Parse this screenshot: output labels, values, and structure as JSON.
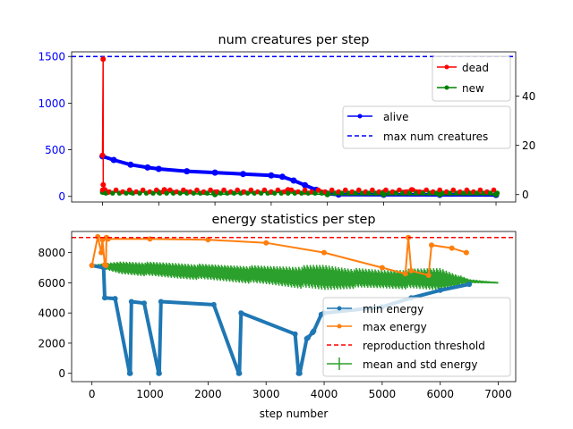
{
  "chart_data": [
    {
      "type": "line",
      "title": "num creatures per step",
      "xlabel": "",
      "xlim": [
        -550,
        7350
      ],
      "ylim_left": [
        -60,
        1550
      ],
      "ylim_right": [
        -3,
        58
      ],
      "yticks_left": [
        "0",
        "500",
        "1000",
        "1500"
      ],
      "yticks_left_values": [
        0,
        500,
        1000,
        1500
      ],
      "yticks_right": [
        "0",
        "20",
        "40"
      ],
      "yticks_right_values": [
        0,
        20,
        40
      ],
      "left_axis_color": "#0000ff",
      "series": [
        {
          "name": "alive",
          "axis": "left",
          "color": "#0000ff",
          "x": [
            0,
            200,
            500,
            800,
            1000,
            1500,
            2000,
            2500,
            3000,
            3200,
            3400,
            3600,
            3800,
            4000,
            4200,
            5000,
            6000,
            7000
          ],
          "values": [
            430,
            390,
            340,
            310,
            295,
            270,
            255,
            240,
            225,
            210,
            170,
            120,
            70,
            30,
            20,
            18,
            17,
            16
          ]
        },
        {
          "name": "max num creatures",
          "axis": "left",
          "color": "#0000ff",
          "style": "dashed",
          "values": [
            1500
          ]
        },
        {
          "name": "dead",
          "axis": "right",
          "color": "#ff0000",
          "x": [
            0,
            10,
            12,
            20,
            40,
            100,
            500,
            1000,
            1100,
            1500,
            2000,
            2500,
            3000,
            3300,
            3600,
            3900,
            4200,
            5000,
            5500,
            6000,
            6500,
            7000
          ],
          "values": [
            16,
            55,
            4,
            1,
            2,
            1,
            1,
            1,
            2,
            1,
            1,
            1,
            1,
            2,
            1,
            1,
            1,
            1,
            2,
            1,
            1,
            0
          ]
        },
        {
          "name": "new",
          "axis": "right",
          "color": "#008000",
          "x": [
            0,
            500,
            1000,
            2000,
            3000,
            4000,
            5000,
            6000,
            7000
          ],
          "values": [
            1,
            1,
            1,
            0,
            1,
            0,
            0,
            0,
            0
          ]
        }
      ],
      "legends": [
        {
          "position": "top-right",
          "entries": [
            "dead",
            "new"
          ]
        },
        {
          "position": "center-right",
          "entries": [
            "alive",
            "max num creatures"
          ]
        }
      ]
    },
    {
      "type": "line",
      "title": "energy statistics per step",
      "xlabel": "step number",
      "xlim": [
        -350,
        7300
      ],
      "ylim": [
        -550,
        9400
      ],
      "xticks": [
        "0",
        "1000",
        "2000",
        "3000",
        "4000",
        "5000",
        "6000",
        "7000"
      ],
      "xticks_values": [
        0,
        1000,
        2000,
        3000,
        4000,
        5000,
        6000,
        7000
      ],
      "yticks": [
        "0",
        "2000",
        "4000",
        "6000",
        "8000"
      ],
      "yticks_values": [
        0,
        2000,
        4000,
        6000,
        8000
      ],
      "series": [
        {
          "name": "min energy",
          "color": "#1f77b4",
          "x": [
            0,
            200,
            220,
            400,
            650,
            660,
            680,
            900,
            1150,
            1160,
            1190,
            2100,
            2530,
            2540,
            2570,
            3500,
            3560,
            3580,
            3700,
            3720,
            3800,
            3820,
            3950,
            4000,
            5000,
            5500,
            6000,
            6500
          ],
          "values": [
            7150,
            7000,
            5000,
            4950,
            0,
            0,
            4750,
            4650,
            0,
            0,
            4750,
            4550,
            0,
            0,
            4000,
            2600,
            0,
            0,
            2300,
            2350,
            2700,
            2800,
            3900,
            4000,
            4400,
            5000,
            5500,
            5900
          ]
        },
        {
          "name": "max energy",
          "color": "#ff7f0e",
          "x": [
            0,
            100,
            160,
            180,
            220,
            240,
            250,
            260,
            280,
            1000,
            2000,
            3000,
            4000,
            5000,
            5400,
            5450,
            5500,
            5800,
            5850,
            6200,
            6450
          ],
          "values": [
            7150,
            9050,
            8000,
            8850,
            7200,
            7150,
            9000,
            8950,
            8900,
            8900,
            8850,
            8650,
            8000,
            7000,
            6600,
            9000,
            6800,
            6500,
            8500,
            8300,
            8000
          ]
        },
        {
          "name": "reproduction threshold",
          "color": "#ff0000",
          "style": "dashed",
          "values": [
            9000
          ]
        },
        {
          "name": "mean and std energy",
          "color": "#2ca02c",
          "x": [
            0,
            500,
            1000,
            1500,
            2000,
            2500,
            3000,
            3500,
            4000,
            4500,
            5000,
            5500,
            6000,
            6500,
            7000
          ],
          "values": [
            7150,
            7000,
            6900,
            6800,
            6700,
            6600,
            6500,
            6400,
            6350,
            6300,
            6250,
            6250,
            6250,
            6100,
            6000
          ],
          "std": [
            50,
            450,
            500,
            550,
            550,
            600,
            650,
            750,
            900,
            700,
            650,
            700,
            800,
            150,
            50
          ]
        }
      ],
      "legend": {
        "position": "lower-right",
        "entries": [
          "min energy",
          "max energy",
          "reproduction threshold",
          "mean and std energy"
        ]
      }
    }
  ]
}
